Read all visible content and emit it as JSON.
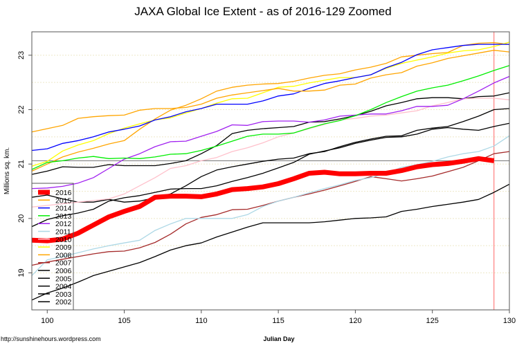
{
  "chart_data": {
    "type": "line",
    "title": "JAXA Global Ice Extent - as of 2016-129 Zoomed",
    "xlabel": "Julian Day",
    "ylabel": "Millions sq. km.",
    "xlim": [
      99,
      130
    ],
    "ylim": [
      18.32,
      23.43
    ],
    "x_ticks": [
      "100",
      "105",
      "110",
      "115",
      "120",
      "125",
      "130"
    ],
    "y_ticks": [
      "19",
      "20",
      "21",
      "22",
      "23"
    ],
    "grid": "horizontal dotted every 0.5",
    "legend_position": "bottom-left",
    "reference_lines": {
      "horizontal_value": 21.06,
      "vertical_day": 129,
      "horizontal_color": "#808080",
      "vertical_color": "#ff6666"
    },
    "x_start": 99,
    "series": [
      {
        "name": "2016",
        "color": "#ff0000",
        "thick": true,
        "values": [
          19.6,
          19.59,
          19.62,
          19.73,
          19.88,
          20.03,
          20.13,
          20.22,
          20.39,
          20.41,
          20.41,
          20.4,
          20.45,
          20.53,
          20.55,
          20.58,
          20.64,
          20.73,
          20.83,
          20.85,
          20.82,
          20.82,
          20.83,
          20.83,
          20.88,
          20.95,
          20.99,
          21.01,
          21.05,
          21.1,
          21.06
        ]
      },
      {
        "name": "2015",
        "color": "#ffa500",
        "values": [
          21.59,
          21.65,
          21.71,
          21.84,
          21.87,
          21.89,
          21.9,
          21.99,
          22.02,
          22.02,
          22.04,
          22.1,
          22.21,
          22.27,
          22.31,
          22.35,
          22.39,
          22.34,
          22.34,
          22.36,
          22.45,
          22.47,
          22.58,
          22.64,
          22.68,
          22.8,
          22.86,
          22.94,
          22.99,
          23.04,
          23.09,
          23.06
        ]
      },
      {
        "name": "2014",
        "color": "#0000ff",
        "values": [
          21.25,
          21.28,
          21.38,
          21.43,
          21.5,
          21.59,
          21.64,
          21.7,
          21.81,
          21.87,
          21.96,
          22.02,
          22.1,
          22.1,
          22.1,
          22.16,
          22.25,
          22.29,
          22.39,
          22.48,
          22.53,
          22.59,
          22.64,
          22.77,
          22.87,
          23.01,
          23.1,
          23.14,
          23.18,
          23.2,
          23.2,
          23.2
        ]
      },
      {
        "name": "2013",
        "color": "#00ee00",
        "values": [
          20.9,
          21.03,
          21.06,
          21.11,
          21.14,
          21.1,
          21.11,
          21.1,
          21.13,
          21.18,
          21.19,
          21.25,
          21.33,
          21.42,
          21.51,
          21.55,
          21.55,
          21.57,
          21.66,
          21.74,
          21.8,
          21.89,
          22.0,
          22.13,
          22.24,
          22.34,
          22.4,
          22.45,
          22.53,
          22.62,
          22.72,
          22.81
        ]
      },
      {
        "name": "2012",
        "color": "#a020f0",
        "values": [
          20.55,
          20.56,
          20.59,
          20.65,
          20.75,
          20.92,
          21.09,
          21.19,
          21.32,
          21.41,
          21.42,
          21.51,
          21.6,
          21.72,
          21.71,
          21.78,
          21.79,
          21.79,
          21.77,
          21.81,
          21.88,
          21.9,
          21.92,
          21.92,
          21.98,
          22.06,
          22.06,
          22.08,
          22.2,
          22.34,
          22.49,
          22.61
        ]
      },
      {
        "name": "2011",
        "color": "#add8e6",
        "values": [
          18.95,
          19.24,
          19.3,
          19.37,
          19.44,
          19.5,
          19.55,
          19.6,
          19.78,
          19.9,
          20.0,
          20.0,
          20.0,
          20.0,
          20.07,
          20.22,
          20.32,
          20.39,
          20.47,
          20.55,
          20.62,
          20.7,
          20.75,
          20.83,
          20.94,
          20.99,
          21.05,
          21.13,
          21.19,
          21.23,
          21.33,
          21.52
        ]
      },
      {
        "name": "2010",
        "color": "#ffc0cb",
        "values": [
          20.21,
          20.24,
          20.27,
          20.3,
          20.33,
          20.36,
          20.45,
          20.6,
          20.75,
          20.92,
          20.97,
          21.06,
          21.12,
          21.23,
          21.3,
          21.39,
          21.5,
          21.57,
          21.65,
          21.73,
          21.81,
          21.84,
          21.88,
          21.9,
          21.94,
          21.98,
          22.07,
          22.13,
          22.2,
          22.21,
          22.21,
          22.18
        ]
      },
      {
        "name": "2009",
        "color": "#ffff00",
        "values": [
          20.96,
          21.05,
          21.24,
          21.35,
          21.43,
          21.56,
          21.66,
          21.74,
          21.81,
          21.85,
          21.94,
          22.02,
          22.12,
          22.2,
          22.21,
          22.31,
          22.41,
          22.43,
          22.49,
          22.54,
          22.59,
          22.59,
          22.64,
          22.76,
          22.85,
          22.91,
          22.97,
          23.04,
          23.08,
          23.1,
          23.16,
          23.24
        ]
      },
      {
        "name": "2008",
        "color": "#ffa500",
        "values": [
          20.87,
          21.0,
          21.13,
          21.22,
          21.29,
          21.37,
          21.43,
          21.64,
          21.83,
          21.99,
          22.08,
          22.2,
          22.34,
          22.41,
          22.45,
          22.47,
          22.48,
          22.52,
          22.58,
          22.63,
          22.66,
          22.73,
          22.78,
          22.85,
          22.97,
          23.0,
          23.03,
          23.05,
          23.18,
          23.22,
          23.23,
          23.2
        ]
      },
      {
        "name": "2007",
        "color": "#a52a2a",
        "values": [
          19.14,
          19.2,
          19.25,
          19.3,
          19.35,
          19.39,
          19.4,
          19.46,
          19.56,
          19.71,
          19.9,
          20.02,
          20.07,
          20.16,
          20.17,
          20.24,
          20.32,
          20.39,
          20.45,
          20.52,
          20.6,
          20.68,
          20.77,
          20.73,
          20.69,
          20.73,
          20.78,
          20.86,
          20.94,
          21.06,
          21.19,
          21.23
        ]
      },
      {
        "name": "2006",
        "color": "#000000",
        "values": [
          20.81,
          20.87,
          20.95,
          20.94,
          20.94,
          20.99,
          20.97,
          20.97,
          20.97,
          21.01,
          21.06,
          21.19,
          21.34,
          21.56,
          21.62,
          21.65,
          21.67,
          21.69,
          21.77,
          21.78,
          21.83,
          21.89,
          21.97,
          22.07,
          22.13,
          22.2,
          22.22,
          22.22,
          22.2,
          22.24,
          22.25,
          22.31
        ]
      },
      {
        "name": "2005",
        "color": "#000000",
        "values": [
          19.85,
          19.98,
          20.05,
          20.1,
          20.17,
          20.32,
          20.38,
          20.42,
          20.48,
          20.54,
          20.55,
          20.55,
          20.6,
          20.68,
          20.75,
          20.83,
          20.93,
          21.03,
          21.18,
          21.24,
          21.3,
          21.38,
          21.44,
          21.49,
          21.5,
          21.55,
          21.64,
          21.67,
          21.64,
          21.62,
          21.69,
          21.75
        ]
      },
      {
        "name": "2004",
        "color": "#000000",
        "values": [
          20.39,
          20.43,
          20.36,
          20.3,
          20.3,
          20.35,
          20.3,
          20.32,
          20.38,
          20.45,
          20.6,
          20.77,
          20.89,
          20.95,
          21.0,
          21.05,
          21.09,
          21.11,
          21.19,
          21.23,
          21.32,
          21.4,
          21.46,
          21.51,
          21.52,
          21.62,
          21.66,
          21.69,
          21.78,
          21.88,
          22.0,
          22.02
        ]
      },
      {
        "name": "2003",
        "color": "#000000",
        "values": [
          18.5,
          18.63,
          18.72,
          18.83,
          18.95,
          19.03,
          19.11,
          19.19,
          19.3,
          19.42,
          19.5,
          19.55,
          19.66,
          19.75,
          19.84,
          19.92,
          19.92,
          19.92,
          19.92,
          19.94,
          19.97,
          20.0,
          20.01,
          20.03,
          20.13,
          20.17,
          20.22,
          20.26,
          20.3,
          20.35,
          20.48,
          20.63
        ]
      },
      {
        "name": "2002",
        "color": "#000000",
        "values": []
      }
    ]
  },
  "footer": {
    "url": "http://sunshinehours.wordpress.com"
  }
}
